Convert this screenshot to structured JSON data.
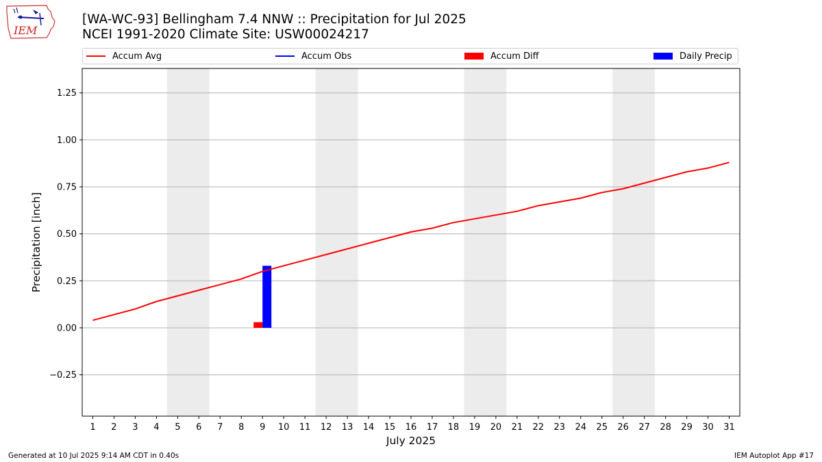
{
  "logo": {
    "text": "IEM",
    "icon": "iowa-state-weather-logo-icon"
  },
  "title": {
    "line1": "[WA-WC-93] Bellingham 7.4 NNW :: Precipitation for Jul 2025",
    "line2": "NCEI 1991-2020 Climate Site: USW00024217"
  },
  "legend": [
    {
      "label": "Accum Avg",
      "kind": "line",
      "color": "#ff0000"
    },
    {
      "label": "Accum Obs",
      "kind": "line",
      "color": "#0000ff"
    },
    {
      "label": "Accum Diff",
      "kind": "box",
      "color": "#ff0000"
    },
    {
      "label": "Daily Precip",
      "kind": "box",
      "color": "#0000ff"
    }
  ],
  "footer": {
    "left": "Generated at 10 Jul 2025 9:14 AM CDT in 0.40s",
    "right": "IEM Autoplot App #17"
  },
  "chart_data": {
    "type": "line",
    "xlabel": "July 2025",
    "ylabel": "Precipitation [inch]",
    "xlim": [
      0.5,
      31.5
    ],
    "ylim": [
      -0.47,
      1.38
    ],
    "grid": "horizontal",
    "legend_position": "top",
    "x_ticks": [
      1,
      2,
      3,
      4,
      5,
      6,
      7,
      8,
      9,
      10,
      11,
      12,
      13,
      14,
      15,
      16,
      17,
      18,
      19,
      20,
      21,
      22,
      23,
      24,
      25,
      26,
      27,
      28,
      29,
      30,
      31
    ],
    "y_ticks": [
      -0.25,
      0.0,
      0.25,
      0.5,
      0.75,
      1.0,
      1.25
    ],
    "y_tick_labels": [
      "−0.25",
      "0.00",
      "0.25",
      "0.50",
      "0.75",
      "1.00",
      "1.25"
    ],
    "weekend_shading": [
      [
        4.5,
        6.5
      ],
      [
        11.5,
        13.5
      ],
      [
        18.5,
        20.5
      ],
      [
        25.5,
        27.5
      ]
    ],
    "shading_color": "#ececec",
    "series": [
      {
        "name": "Accum Avg",
        "type": "line",
        "color": "#ff0000",
        "x": [
          1,
          2,
          3,
          4,
          5,
          6,
          7,
          8,
          9,
          10,
          11,
          12,
          13,
          14,
          15,
          16,
          17,
          18,
          19,
          20,
          21,
          22,
          23,
          24,
          25,
          26,
          27,
          28,
          29,
          30,
          31
        ],
        "values": [
          0.04,
          0.07,
          0.1,
          0.14,
          0.17,
          0.2,
          0.23,
          0.26,
          0.3,
          0.33,
          0.36,
          0.39,
          0.42,
          0.45,
          0.48,
          0.51,
          0.53,
          0.56,
          0.58,
          0.6,
          0.62,
          0.65,
          0.67,
          0.69,
          0.72,
          0.74,
          0.77,
          0.8,
          0.83,
          0.85,
          0.88
        ]
      },
      {
        "name": "Accum Diff",
        "type": "bar",
        "color": "#ff0000",
        "x": [
          9
        ],
        "values": [
          0.03
        ]
      },
      {
        "name": "Daily Precip",
        "type": "bar",
        "color": "#0000ff",
        "x": [
          9
        ],
        "values": [
          0.33
        ]
      }
    ]
  }
}
